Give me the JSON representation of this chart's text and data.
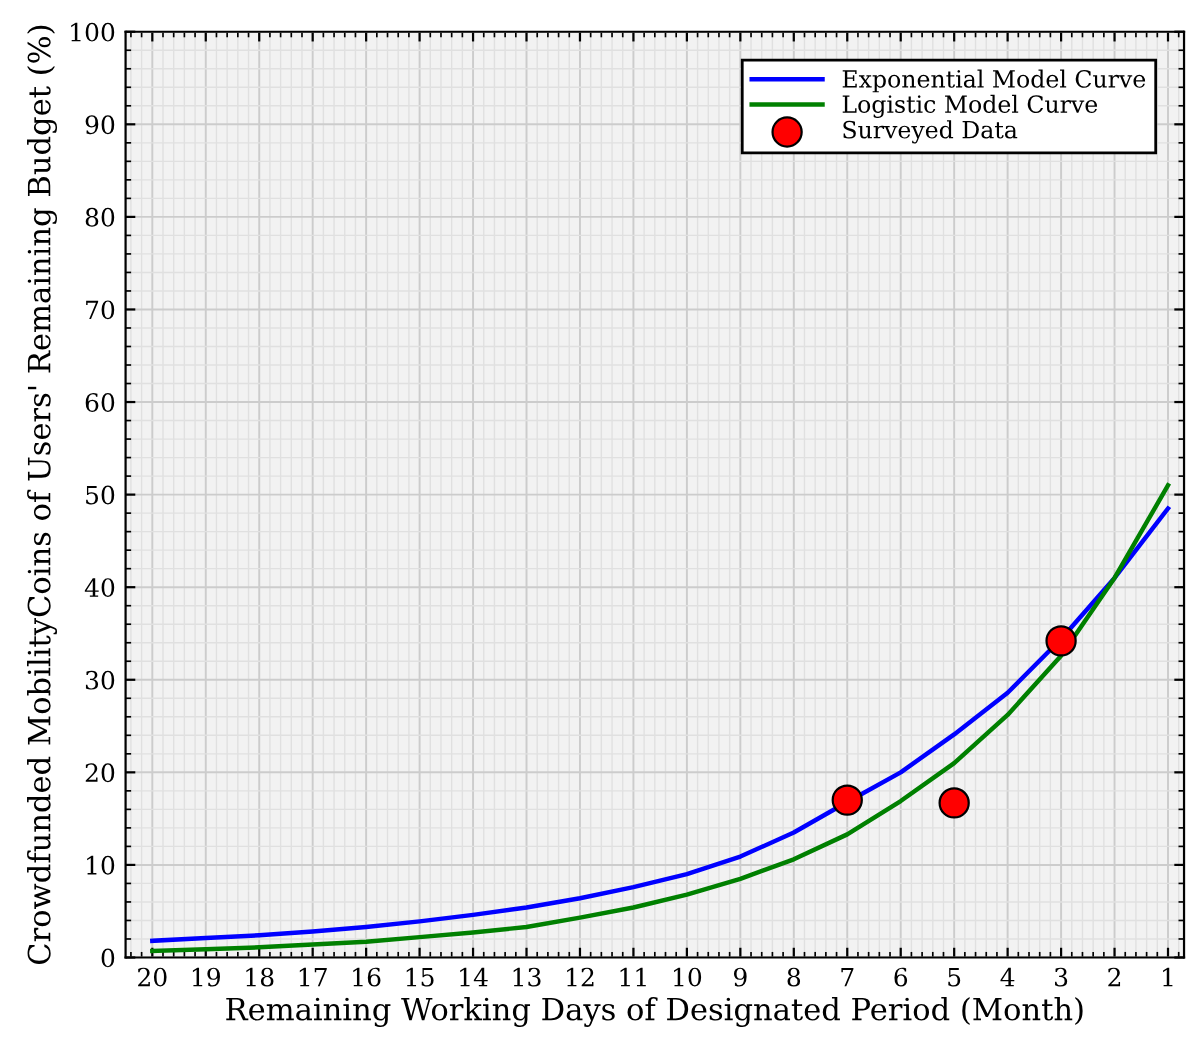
{
  "chart_data": {
    "type": "line",
    "xlabel": "Remaining Working Days of Designated Period (Month)",
    "ylabel": "Crowdfunded MobilityCoins of Users' Remaining Budget (%)",
    "x": [
      20,
      19,
      18,
      17,
      16,
      15,
      14,
      13,
      12,
      11,
      10,
      9,
      8,
      7,
      6,
      5,
      4,
      3,
      2,
      1
    ],
    "series": [
      {
        "name": "Exponential Model Curve",
        "color": "#0000ff",
        "values": [
          1.8,
          2.1,
          2.4,
          2.8,
          3.3,
          3.9,
          4.6,
          5.4,
          6.4,
          7.6,
          9.0,
          10.9,
          13.5,
          16.8,
          20.0,
          24.1,
          28.6,
          34.4,
          41.0,
          48.5
        ]
      },
      {
        "name": "Logistic Model Curve",
        "color": "#008000",
        "values": [
          0.7,
          0.9,
          1.1,
          1.4,
          1.7,
          2.2,
          2.7,
          3.3,
          4.3,
          5.4,
          6.8,
          8.5,
          10.6,
          13.3,
          16.9,
          21.0,
          26.2,
          32.6,
          41.0,
          51.0
        ]
      },
      {
        "name": "Surveyed Data",
        "type": "scatter",
        "color": "#ff0000",
        "x": [
          7,
          5,
          3
        ],
        "values": [
          17.0,
          16.7,
          34.2
        ],
        "marker": "circle"
      }
    ],
    "xlim": [
      20.5,
      0.7
    ],
    "ylim": [
      0,
      100
    ],
    "xticks": [
      20,
      19,
      18,
      17,
      16,
      15,
      14,
      13,
      12,
      11,
      10,
      9,
      8,
      7,
      6,
      5,
      4,
      3,
      2,
      1
    ],
    "yticks": [
      0,
      10,
      20,
      30,
      40,
      50,
      60,
      70,
      80,
      90,
      100
    ],
    "grid": true,
    "legend": "top right",
    "marker": "none",
    "line_style": "solid"
  }
}
